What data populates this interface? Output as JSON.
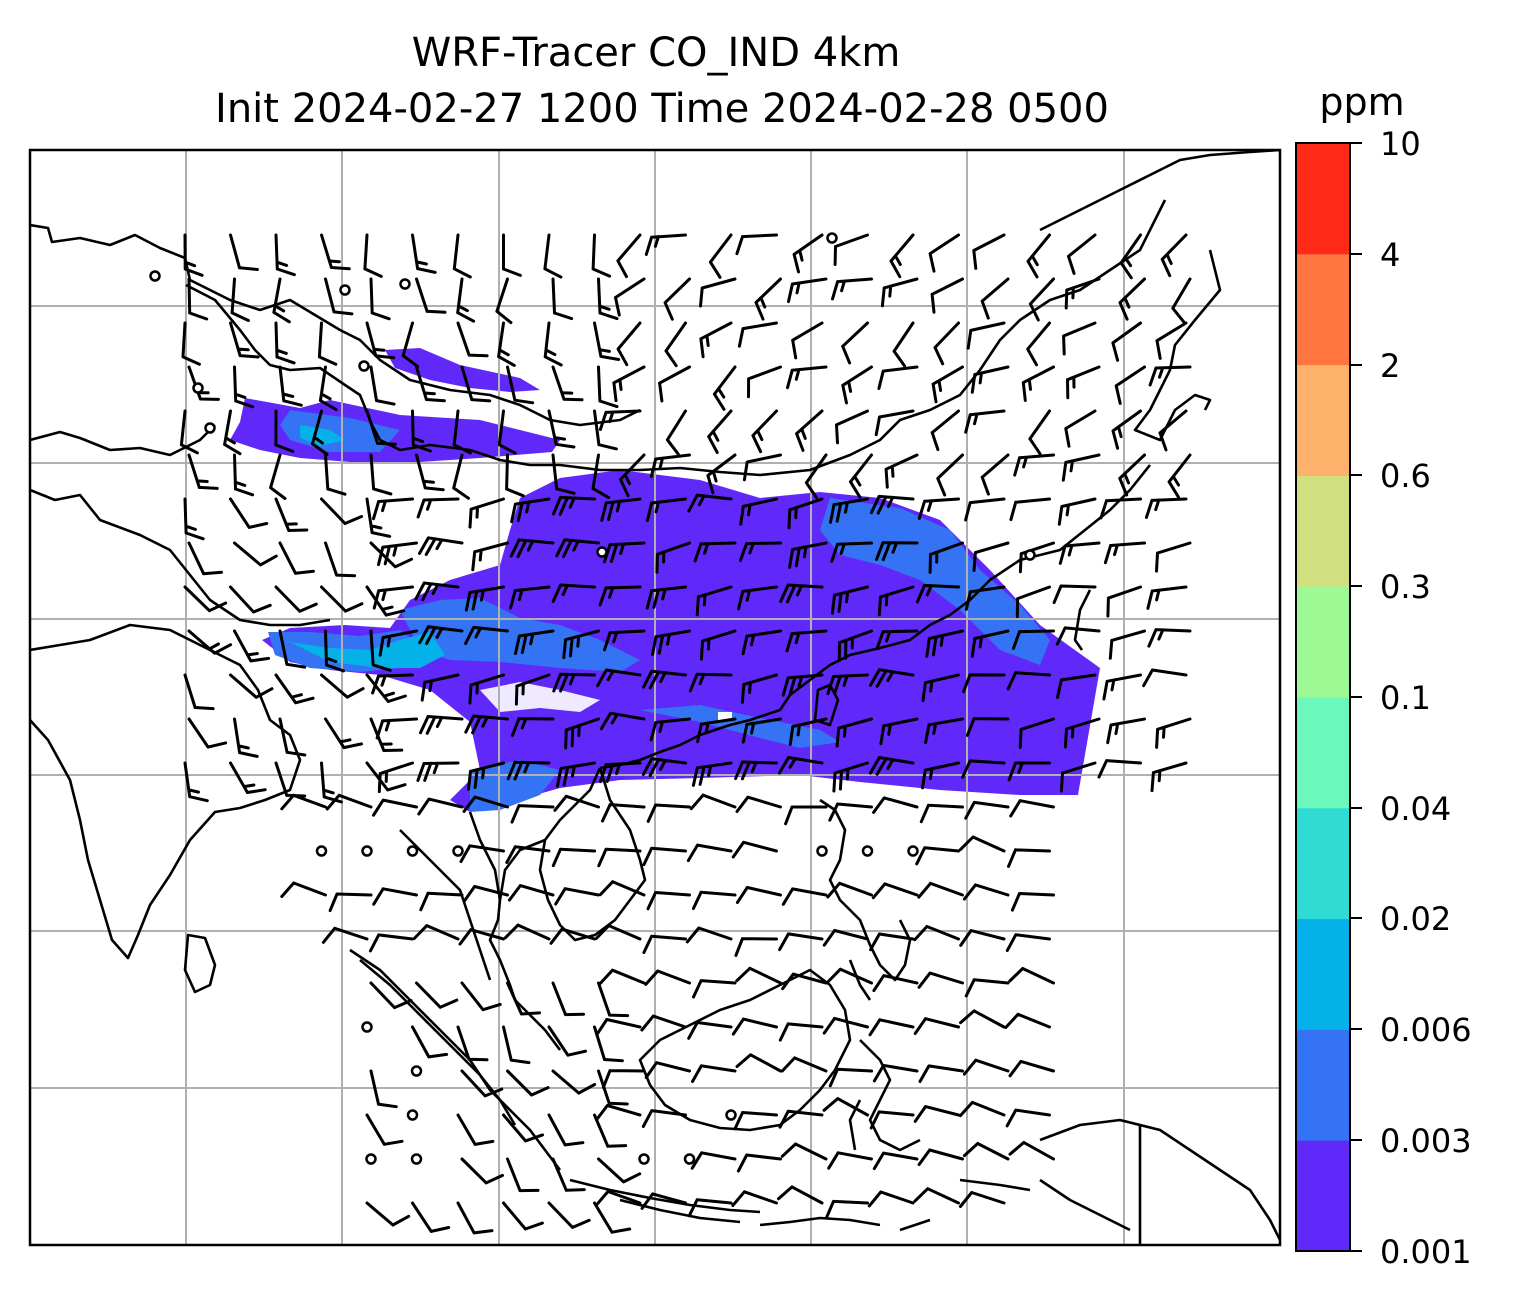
{
  "title": {
    "line1": "WRF-Tracer CO_IND 4km",
    "line2": "Init 2024-02-27 1200 Time 2024-02-28 0500"
  },
  "colorbar": {
    "unit": "ppm",
    "ticks": [
      "0.001",
      "0.003",
      "0.006",
      "0.02",
      "0.04",
      "0.1",
      "0.3",
      "0.6",
      "2",
      "4",
      "10"
    ],
    "colors": [
      "#6029f9",
      "#3473f3",
      "#04b1e8",
      "#30dbd4",
      "#6cf8bd",
      "#9cf993",
      "#d0e081",
      "#fdb16a",
      "#ff7640",
      "#ff2b18"
    ]
  },
  "map": {
    "gridlines": true,
    "plume_colors": [
      "#6029f9",
      "#3473f3",
      "#04b1e8"
    ],
    "coast_color": "#000000",
    "grid_color": "#b0b0b0"
  }
}
